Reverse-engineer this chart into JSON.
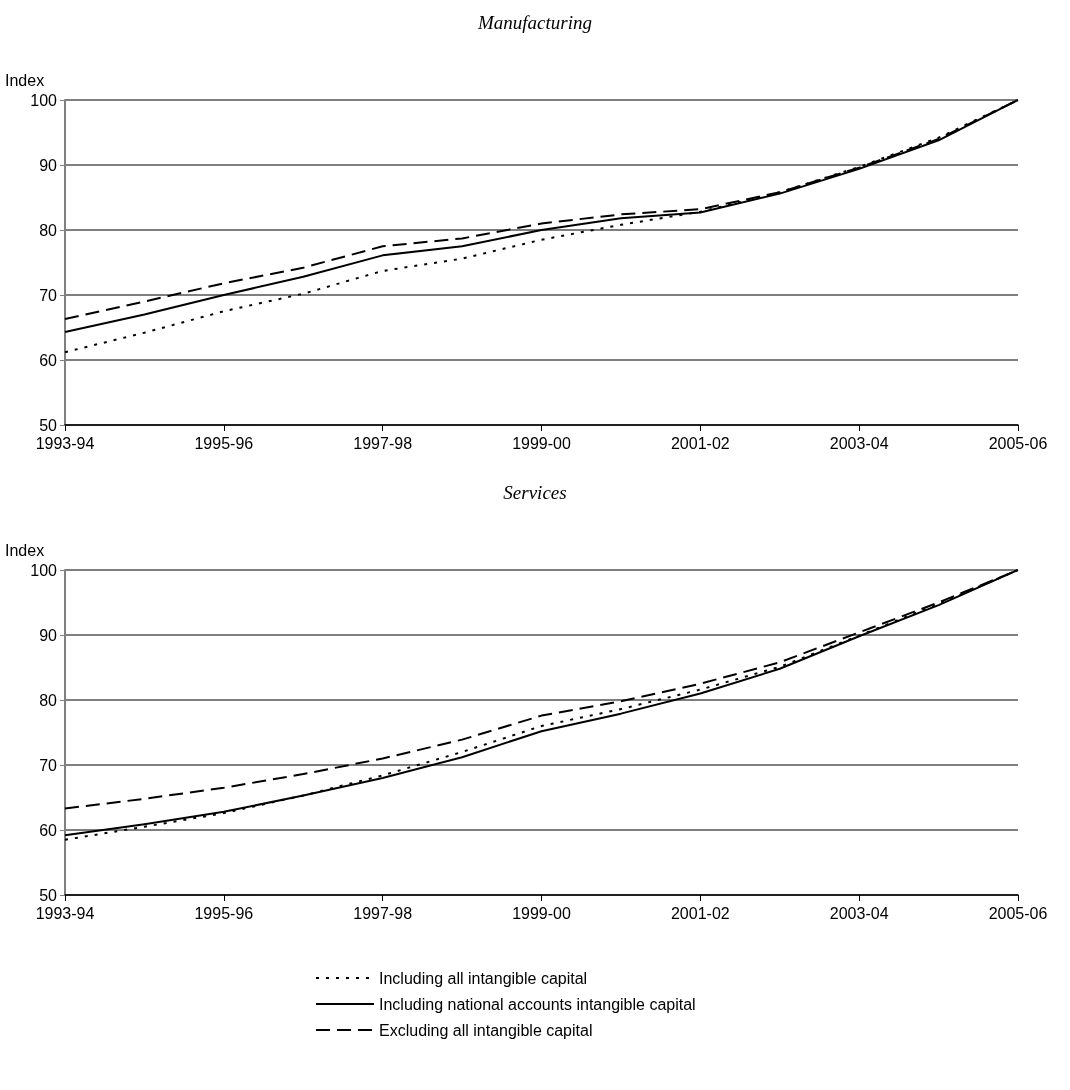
{
  "chart_data": [
    {
      "type": "line",
      "title": "Manufacturing",
      "ylabel": "Index",
      "categories": [
        "1993-94",
        null,
        "1995-96",
        null,
        "1997-98",
        null,
        "1999-00",
        null,
        "2001-02",
        null,
        "2003-04",
        null,
        "2005-06"
      ],
      "series": [
        {
          "color": "#000000",
          "line_style": "dotted",
          "values": [
            61.2,
            64.2,
            67.5,
            70.2,
            73.7,
            75.6,
            78.5,
            80.8,
            82.8,
            85.8,
            89.7,
            94.2,
            100
          ]
        },
        {
          "color": "#000000",
          "line_style": "solid",
          "values": [
            64.3,
            67.0,
            70.0,
            72.8,
            76.1,
            77.5,
            80.0,
            81.8,
            82.7,
            85.6,
            89.4,
            93.8,
            100
          ]
        },
        {
          "color": "#000000",
          "line_style": "dashed",
          "values": [
            66.3,
            69.0,
            71.8,
            74.2,
            77.5,
            78.7,
            81.0,
            82.4,
            83.2,
            85.8,
            89.6,
            94.0,
            100
          ]
        }
      ],
      "ylim": [
        50,
        100
      ],
      "yticks": [
        50,
        60,
        70,
        80,
        90,
        100
      ],
      "grid": "y",
      "legend": false,
      "marker": "none"
    },
    {
      "type": "line",
      "title": "Services",
      "ylabel": "Index",
      "categories": [
        "1993-94",
        null,
        "1995-96",
        null,
        "1997-98",
        null,
        "1999-00",
        null,
        "2001-02",
        null,
        "2003-04",
        null,
        "2005-06"
      ],
      "series": [
        {
          "name": "Including all intangible capital",
          "color": "#000000",
          "line_style": "dotted",
          "values": [
            58.5,
            60.5,
            62.6,
            65.3,
            68.4,
            72.0,
            76.0,
            78.6,
            81.6,
            85.1,
            89.9,
            94.8,
            100
          ]
        },
        {
          "name": "Including national accounts intangible capital",
          "color": "#000000",
          "line_style": "solid",
          "values": [
            59.2,
            60.9,
            62.8,
            65.3,
            68.0,
            71.2,
            75.2,
            77.9,
            81.0,
            84.8,
            89.8,
            94.6,
            100
          ]
        },
        {
          "name": "Excluding all intangible capital",
          "color": "#000000",
          "line_style": "dashed",
          "values": [
            63.3,
            64.8,
            66.5,
            68.6,
            71.0,
            73.9,
            77.6,
            79.8,
            82.5,
            85.8,
            90.4,
            95.0,
            100
          ]
        }
      ],
      "ylim": [
        50,
        100
      ],
      "yticks": [
        50,
        60,
        70,
        80,
        90,
        100
      ],
      "grid": "y",
      "legend": "bottom",
      "marker": "none"
    }
  ]
}
